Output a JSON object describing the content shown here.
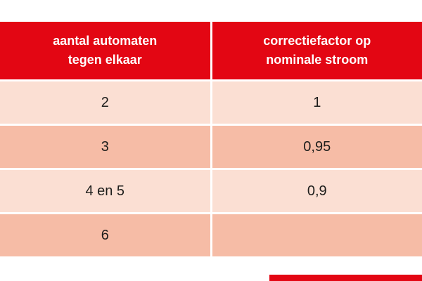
{
  "colors": {
    "header_bg": "#e30613",
    "header_text": "#ffffff",
    "row_light_bg": "#fbdfd3",
    "row_dark_bg": "#f6bca6",
    "cell_text": "#1d1d1b",
    "gutter": "#ffffff",
    "partial_bottom_element": "#e30613"
  },
  "table": {
    "columns": [
      {
        "header_line1": "aantal automaten",
        "header_line2": "tegen elkaar"
      },
      {
        "header_line1": "correctiefactor op",
        "header_line2": "nominale stroom"
      }
    ],
    "rows": [
      {
        "aantal": "2",
        "factor": "1"
      },
      {
        "aantal": "3",
        "factor": "0,95"
      },
      {
        "aantal": "4 en 5",
        "factor": "0,9"
      },
      {
        "aantal": "6",
        "factor": ""
      }
    ]
  }
}
